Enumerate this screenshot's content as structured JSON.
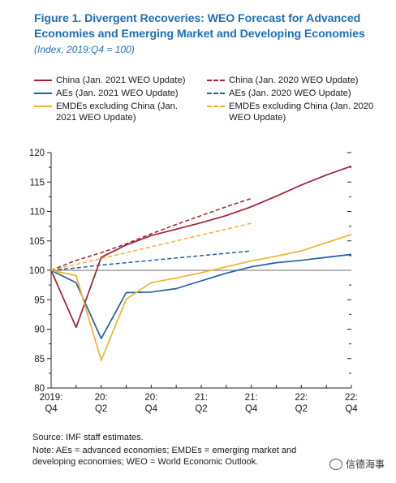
{
  "header": {
    "title": "Figure 1.  Divergent Recoveries: WEO Forecast for Advanced Economies and Emerging Market and Developing Economies",
    "subtitle": "(Index, 2019:Q4 = 100)"
  },
  "legend": {
    "items": [
      {
        "label": "China (Jan. 2021 WEO Update)",
        "color": "#a31f34",
        "style": "solid"
      },
      {
        "label": "China (Jan. 2020 WEO Update)",
        "color": "#a31f34",
        "style": "dashed"
      },
      {
        "label": "AEs (Jan. 2021 WEO Update)",
        "color": "#1f5fa8",
        "style": "solid"
      },
      {
        "label": "AEs (Jan. 2020 WEO Update)",
        "color": "#1f5fa8",
        "style": "dashed"
      },
      {
        "label": "EMDEs excluding China (Jan. 2021 WEO Update)",
        "color": "#f0b429",
        "style": "solid"
      },
      {
        "label": "EMDEs excluding China (Jan. 2020 WEO Update)",
        "color": "#f0b429",
        "style": "dashed"
      }
    ]
  },
  "chart_data": {
    "type": "line",
    "x": [
      "2019:Q4",
      "2020:Q1",
      "2020:Q2",
      "2020:Q3",
      "2020:Q4",
      "2021:Q1",
      "2021:Q2",
      "2021:Q3",
      "2021:Q4",
      "2022:Q1",
      "2022:Q2",
      "2022:Q3",
      "2022:Q4"
    ],
    "x_tick_labels": [
      {
        "index": 0,
        "line1": "2019:",
        "line2": "Q4"
      },
      {
        "index": 2,
        "line1": "20:",
        "line2": "Q2"
      },
      {
        "index": 4,
        "line1": "20:",
        "line2": "Q4"
      },
      {
        "index": 6,
        "line1": "21:",
        "line2": "Q2"
      },
      {
        "index": 8,
        "line1": "21:",
        "line2": "Q4"
      },
      {
        "index": 10,
        "line1": "22:",
        "line2": "Q2"
      },
      {
        "index": 12,
        "line1": "22:",
        "line2": "Q4"
      }
    ],
    "ylim": [
      80,
      120
    ],
    "yticks": [
      80,
      85,
      90,
      95,
      100,
      105,
      110,
      115,
      120
    ],
    "reference_line": 100,
    "grid": false,
    "series": [
      {
        "name": "China (Jan. 2021 WEO Update)",
        "color": "#a31f34",
        "style": "solid",
        "values": [
          100,
          90.3,
          102.2,
          104.3,
          105.9,
          107.0,
          108.1,
          109.3,
          110.8,
          112.6,
          114.5,
          116.2,
          117.7
        ]
      },
      {
        "name": "AEs (Jan. 2021 WEO Update)",
        "color": "#1f5fa8",
        "style": "solid",
        "values": [
          100,
          97.9,
          88.4,
          96.2,
          96.3,
          96.9,
          98.2,
          99.5,
          100.6,
          101.3,
          101.7,
          102.2,
          102.7
        ]
      },
      {
        "name": "EMDEs excluding China (Jan. 2021 WEO Update)",
        "color": "#f0b429",
        "style": "solid",
        "values": [
          100,
          99.1,
          84.7,
          95.1,
          97.9,
          98.7,
          99.6,
          100.6,
          101.6,
          102.4,
          103.3,
          104.7,
          106.1
        ]
      },
      {
        "name": "China (Jan. 2020 WEO Update)",
        "color": "#a31f34",
        "style": "dashed",
        "values": [
          100,
          101.7,
          103.0,
          104.5,
          106.2,
          107.8,
          109.3,
          110.8,
          112.2,
          null,
          null,
          null,
          null
        ]
      },
      {
        "name": "AEs (Jan. 2020 WEO Update)",
        "color": "#1f5fa8",
        "style": "dashed",
        "values": [
          100,
          100.4,
          100.9,
          101.3,
          101.7,
          102.1,
          102.5,
          102.9,
          103.3,
          null,
          null,
          null,
          null
        ]
      },
      {
        "name": "EMDEs excluding China (Jan. 2020 WEO Update)",
        "color": "#f0b429",
        "style": "dashed",
        "values": [
          100,
          101.0,
          102.0,
          103.0,
          104.0,
          105.0,
          106.0,
          107.0,
          108.0,
          null,
          null,
          null,
          null
        ]
      }
    ]
  },
  "footer": {
    "source": "Source: IMF staff estimates.",
    "note": "Note: AEs = advanced economies; EMDEs = emerging market and developing economies; WEO = World Economic Outlook."
  },
  "watermark": {
    "text": "信德海事",
    "icon": "wechat-icon"
  }
}
